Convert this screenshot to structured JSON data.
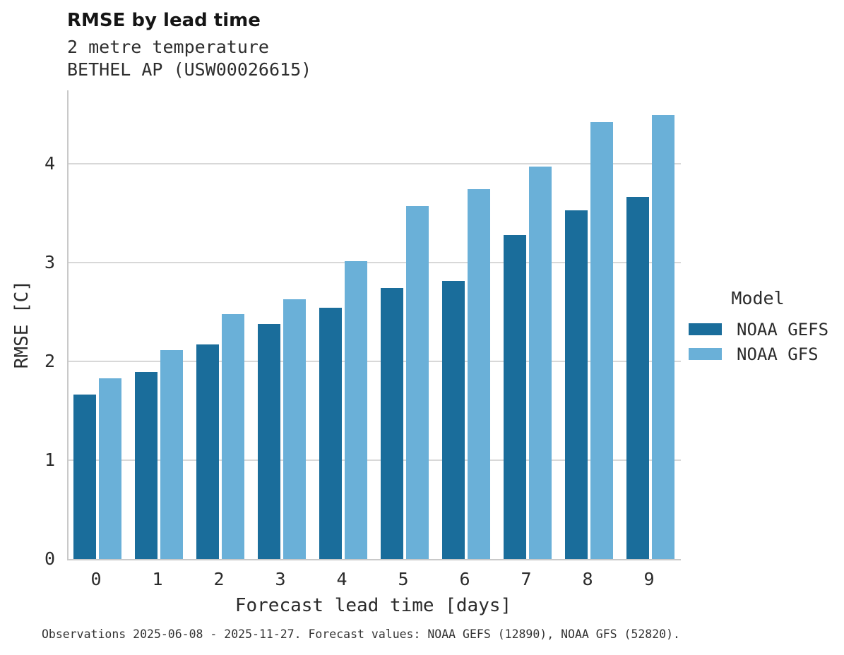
{
  "header": {
    "title": "RMSE by lead time",
    "subtitle_line1": "2 metre temperature",
    "subtitle_line2": "BETHEL AP (USW00026615)"
  },
  "chart_data": {
    "type": "bar",
    "title": "RMSE by lead time",
    "subtitle": [
      "2 metre temperature",
      "BETHEL AP (USW00026615)"
    ],
    "categories": [
      0,
      1,
      2,
      3,
      4,
      5,
      6,
      7,
      8,
      9
    ],
    "series": [
      {
        "name": "NOAA GEFS",
        "color": "#1a6d9b",
        "values": [
          1.66,
          1.89,
          2.17,
          2.38,
          2.54,
          2.74,
          2.81,
          3.28,
          3.53,
          3.66
        ]
      },
      {
        "name": "NOAA GFS",
        "color": "#6ab0d8",
        "values": [
          1.83,
          2.11,
          2.48,
          2.63,
          3.01,
          3.57,
          3.74,
          3.97,
          4.42,
          4.49
        ]
      }
    ],
    "xlabel": "Forecast lead time [days]",
    "ylabel": "RMSE [C]",
    "ylim": [
      0,
      4.74
    ],
    "yticks": [
      0,
      1,
      2,
      3,
      4
    ],
    "grid": "horizontal",
    "legend_title": "Model",
    "legend_position": "right",
    "gridline_color": "#d8d8d8",
    "axis_color": "#c9c9c9"
  },
  "legend": {
    "title": "Model",
    "items": [
      {
        "label": "NOAA GEFS",
        "color": "#1a6d9b"
      },
      {
        "label": "NOAA GFS",
        "color": "#6ab0d8"
      }
    ]
  },
  "footer": {
    "note": "Observations 2025-06-08 - 2025-11-27. Forecast values: NOAA GEFS (12890), NOAA GFS (52820)."
  }
}
